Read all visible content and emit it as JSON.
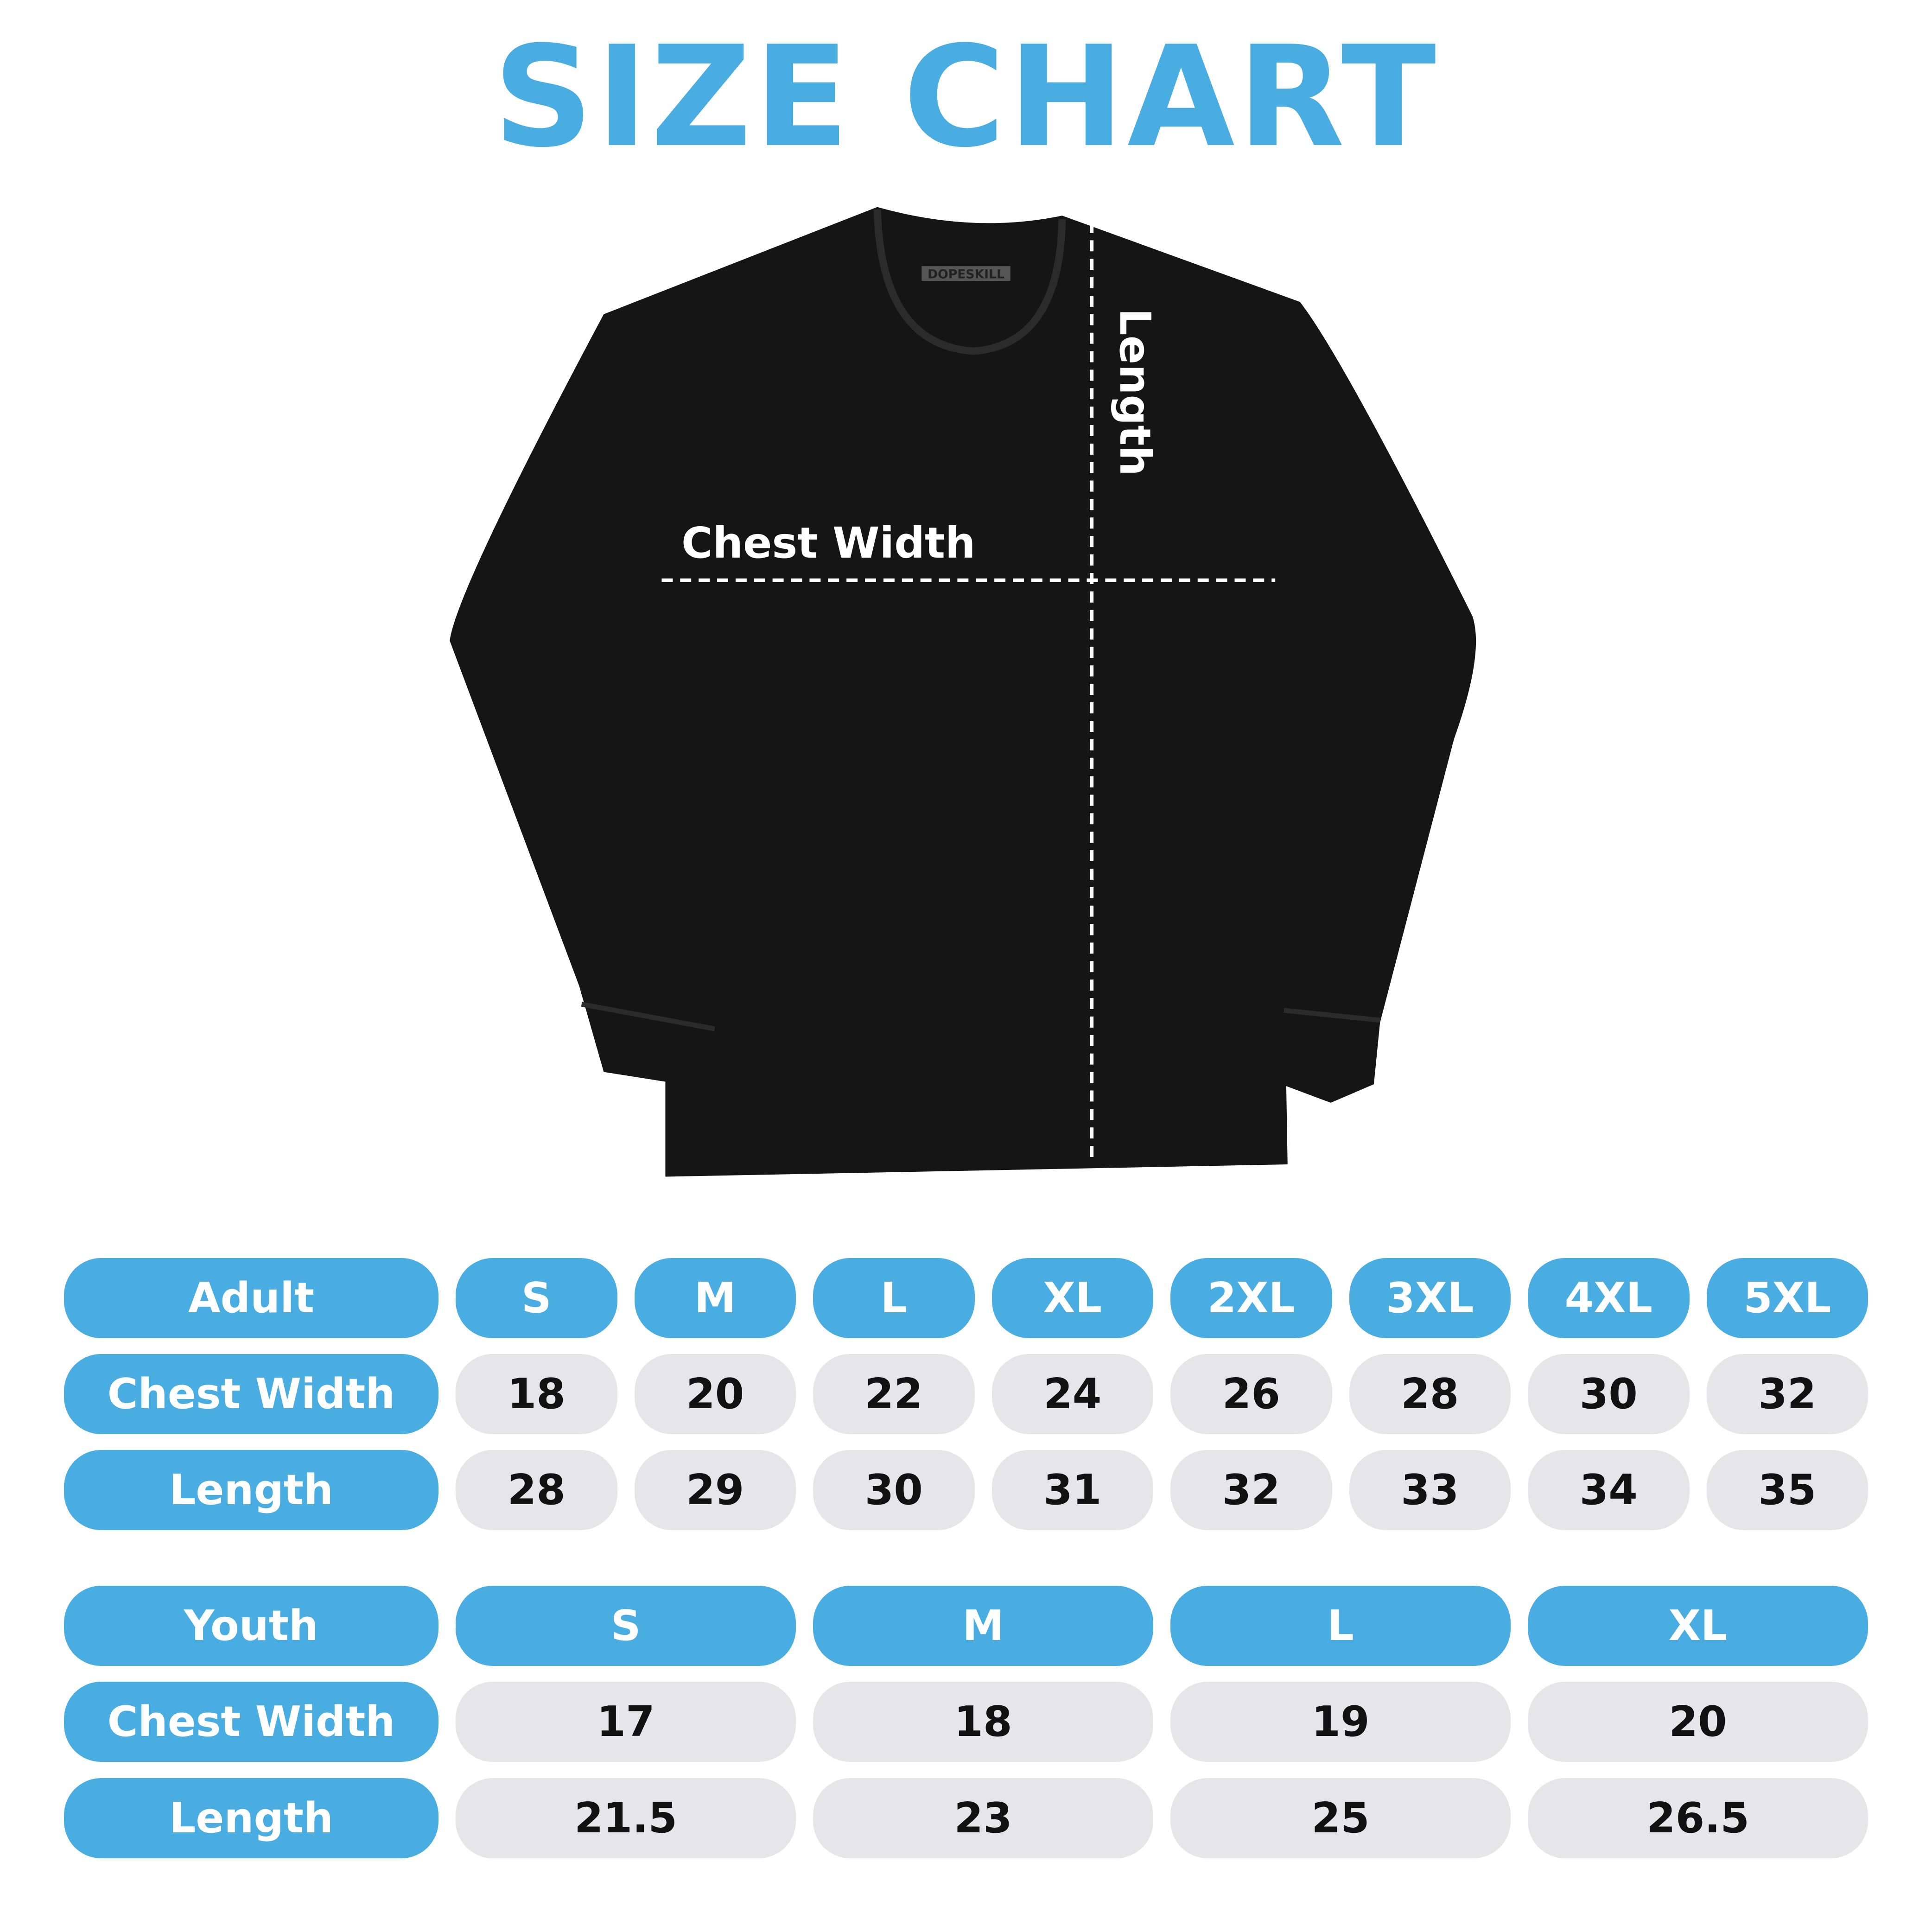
{
  "title": "SIZE CHART",
  "colors": {
    "accent": "#4AADE1",
    "cell_bg": "#E6E6E8",
    "shirt": "#151515"
  },
  "shirt": {
    "tag": "DOPESKILL",
    "chest_label": "Chest Width",
    "length_label": "Length"
  },
  "adult": {
    "header": "Adult",
    "sizes": [
      "S",
      "M",
      "L",
      "XL",
      "2XL",
      "3XL",
      "4XL",
      "5XL"
    ],
    "rows": [
      {
        "label": "Chest Width",
        "values": [
          "18",
          "20",
          "22",
          "24",
          "26",
          "28",
          "30",
          "32"
        ]
      },
      {
        "label": "Length",
        "values": [
          "28",
          "29",
          "30",
          "31",
          "32",
          "33",
          "34",
          "35"
        ]
      }
    ]
  },
  "youth": {
    "header": "Youth",
    "sizes": [
      "S",
      "M",
      "L",
      "XL"
    ],
    "rows": [
      {
        "label": "Chest Width",
        "values": [
          "17",
          "18",
          "19",
          "20"
        ]
      },
      {
        "label": "Length",
        "values": [
          "21.5",
          "23",
          "25",
          "26.5"
        ]
      }
    ]
  }
}
